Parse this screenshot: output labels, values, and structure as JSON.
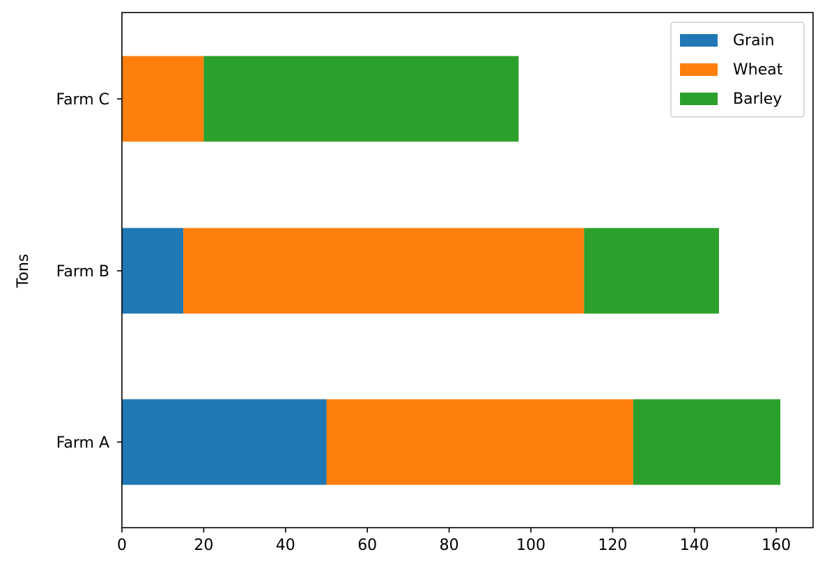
{
  "chart_data": {
    "type": "bar",
    "orientation": "horizontal",
    "stacked": true,
    "categories": [
      "Farm A",
      "Farm B",
      "Farm C"
    ],
    "series": [
      {
        "name": "Grain",
        "values": [
          50,
          15,
          0
        ],
        "color": "#1f77b4"
      },
      {
        "name": "Wheat",
        "values": [
          75,
          98,
          20
        ],
        "color": "#ff7f0e"
      },
      {
        "name": "Barley",
        "values": [
          36,
          33,
          77
        ],
        "color": "#2ca02c"
      }
    ],
    "xlim": [
      0,
      169
    ],
    "xticks": [
      0,
      20,
      40,
      60,
      80,
      100,
      120,
      140,
      160
    ],
    "title": "",
    "xlabel": "",
    "ylabel": "Tons",
    "grid": false,
    "legend_position": "top-right"
  }
}
